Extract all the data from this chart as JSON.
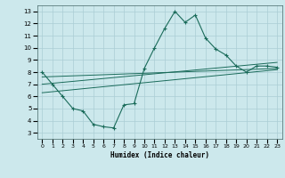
{
  "xlabel": "Humidex (Indice chaleur)",
  "ylabel": "",
  "bg_color": "#cce8ec",
  "grid_color": "#aacdd4",
  "line_color": "#1a6b5a",
  "xlim": [
    -0.5,
    23.5
  ],
  "ylim": [
    2.5,
    13.5
  ],
  "yticks": [
    3,
    4,
    5,
    6,
    7,
    8,
    9,
    10,
    11,
    12,
    13
  ],
  "xticks": [
    0,
    1,
    2,
    3,
    4,
    5,
    6,
    7,
    8,
    9,
    10,
    11,
    12,
    13,
    14,
    15,
    16,
    17,
    18,
    19,
    20,
    21,
    22,
    23
  ],
  "line1_x": [
    0,
    1,
    2,
    3,
    4,
    5,
    6,
    7,
    8,
    9,
    10,
    11,
    12,
    13,
    14,
    15,
    16,
    17,
    18,
    19,
    20,
    21,
    22,
    23
  ],
  "line1_y": [
    8.0,
    7.0,
    6.0,
    5.0,
    4.8,
    3.7,
    3.5,
    3.4,
    5.3,
    5.4,
    8.3,
    10.0,
    11.6,
    13.0,
    12.1,
    12.7,
    10.8,
    9.9,
    9.4,
    8.5,
    8.0,
    8.5,
    8.5,
    8.4
  ],
  "line2_x": [
    0,
    23
  ],
  "line2_y": [
    7.6,
    8.3
  ],
  "line3_x": [
    0,
    23
  ],
  "line3_y": [
    7.0,
    8.8
  ],
  "line4_x": [
    0,
    23
  ],
  "line4_y": [
    6.3,
    8.2
  ]
}
